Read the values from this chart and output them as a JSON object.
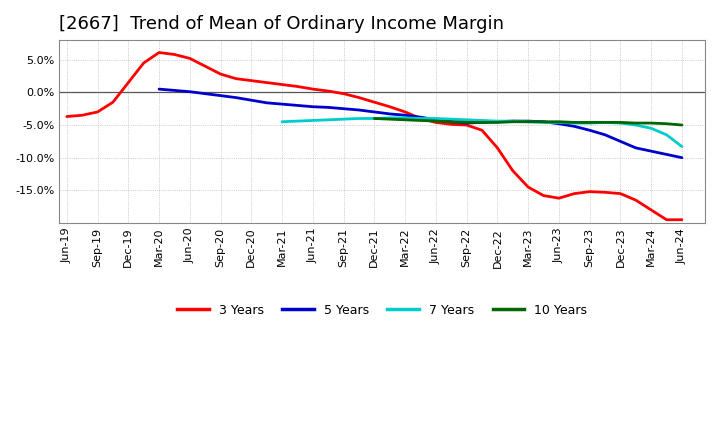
{
  "title": "[2667]  Trend of Mean of Ordinary Income Margin",
  "title_fontsize": 13,
  "background_color": "#ffffff",
  "plot_bg_color": "#ffffff",
  "grid_color": "#aaaaaa",
  "ylim": [
    -20,
    8
  ],
  "yticks": [
    5.0,
    0.0,
    -5.0,
    -10.0,
    -15.0
  ],
  "series": {
    "3yr": {
      "color": "#ff0000",
      "label": "3 Years",
      "linewidth": 2.0,
      "x": [
        0,
        1,
        2,
        3,
        4,
        5,
        6,
        7,
        8,
        9,
        10,
        11,
        12,
        13,
        14,
        15,
        16,
        17,
        18,
        19,
        20,
        21,
        22,
        23,
        24,
        25,
        26,
        27,
        28,
        29,
        30,
        31,
        32,
        33,
        34,
        35,
        36,
        37,
        38,
        39,
        40
      ],
      "y": [
        -3.7,
        -3.5,
        -3.0,
        -1.5,
        1.5,
        4.5,
        6.1,
        5.8,
        5.2,
        4.0,
        2.8,
        2.1,
        1.8,
        1.5,
        1.2,
        0.9,
        0.5,
        0.2,
        -0.2,
        -0.8,
        -1.5,
        -2.2,
        -3.0,
        -4.0,
        -4.6,
        -4.9,
        -5.0,
        -5.8,
        -8.5,
        -12.0,
        -14.5,
        -15.8,
        -16.2,
        -15.5,
        -15.2,
        -15.3,
        -15.5,
        -16.5,
        -18.0,
        -19.5,
        -19.5
      ]
    },
    "5yr": {
      "color": "#0000cc",
      "label": "5 Years",
      "linewidth": 2.0,
      "x": [
        6,
        7,
        8,
        9,
        10,
        11,
        12,
        13,
        14,
        15,
        16,
        17,
        18,
        19,
        20,
        21,
        22,
        23,
        24,
        25,
        26,
        27,
        28,
        29,
        30,
        31,
        32,
        33,
        34,
        35,
        36,
        37,
        38,
        39,
        40
      ],
      "y": [
        0.5,
        0.3,
        0.1,
        -0.2,
        -0.5,
        -0.8,
        -1.2,
        -1.6,
        -1.8,
        -2.0,
        -2.2,
        -2.3,
        -2.5,
        -2.7,
        -3.0,
        -3.3,
        -3.5,
        -3.8,
        -4.2,
        -4.5,
        -4.7,
        -4.6,
        -4.5,
        -4.4,
        -4.4,
        -4.5,
        -4.8,
        -5.2,
        -5.8,
        -6.5,
        -7.5,
        -8.5,
        -9.0,
        -9.5,
        -10.0
      ]
    },
    "7yr": {
      "color": "#00cccc",
      "label": "7 Years",
      "linewidth": 2.0,
      "x": [
        14,
        15,
        16,
        17,
        18,
        19,
        20,
        21,
        22,
        23,
        24,
        25,
        26,
        27,
        28,
        29,
        30,
        31,
        32,
        33,
        34,
        35,
        36,
        37,
        38,
        39,
        40
      ],
      "y": [
        -4.5,
        -4.4,
        -4.3,
        -4.2,
        -4.1,
        -4.0,
        -4.0,
        -3.9,
        -3.9,
        -4.0,
        -4.0,
        -4.1,
        -4.2,
        -4.3,
        -4.4,
        -4.4,
        -4.5,
        -4.6,
        -4.6,
        -4.7,
        -4.7,
        -4.6,
        -4.7,
        -5.0,
        -5.5,
        -6.5,
        -8.3
      ]
    },
    "10yr": {
      "color": "#006600",
      "label": "10 Years",
      "linewidth": 2.0,
      "x": [
        20,
        21,
        22,
        23,
        24,
        25,
        26,
        27,
        28,
        29,
        30,
        31,
        32,
        33,
        34,
        35,
        36,
        37,
        38,
        39,
        40
      ],
      "y": [
        -4.0,
        -4.1,
        -4.2,
        -4.3,
        -4.4,
        -4.5,
        -4.6,
        -4.6,
        -4.6,
        -4.5,
        -4.5,
        -4.5,
        -4.5,
        -4.6,
        -4.6,
        -4.6,
        -4.6,
        -4.7,
        -4.7,
        -4.8,
        -5.0
      ]
    }
  },
  "xtick_positions": [
    0,
    2,
    4,
    6,
    8,
    10,
    12,
    14,
    16,
    18,
    20,
    22,
    24,
    26,
    28,
    30,
    32,
    34,
    36,
    38,
    40
  ],
  "xtick_labels": [
    "Jun-19",
    "Sep-19",
    "Dec-19",
    "Mar-20",
    "Jun-20",
    "Sep-20",
    "Dec-20",
    "Mar-21",
    "Jun-21",
    "Sep-21",
    "Dec-21",
    "Mar-22",
    "Jun-22",
    "Sep-22",
    "Dec-22",
    "Mar-23",
    "Jun-23",
    "Sep-23",
    "Dec-23",
    "Mar-24",
    "Jun-24"
  ],
  "xlim": [
    -0.5,
    41.5
  ],
  "legend_colors": [
    "#ff0000",
    "#0000cc",
    "#00cccc",
    "#006600"
  ],
  "legend_labels": [
    "3 Years",
    "5 Years",
    "7 Years",
    "10 Years"
  ]
}
